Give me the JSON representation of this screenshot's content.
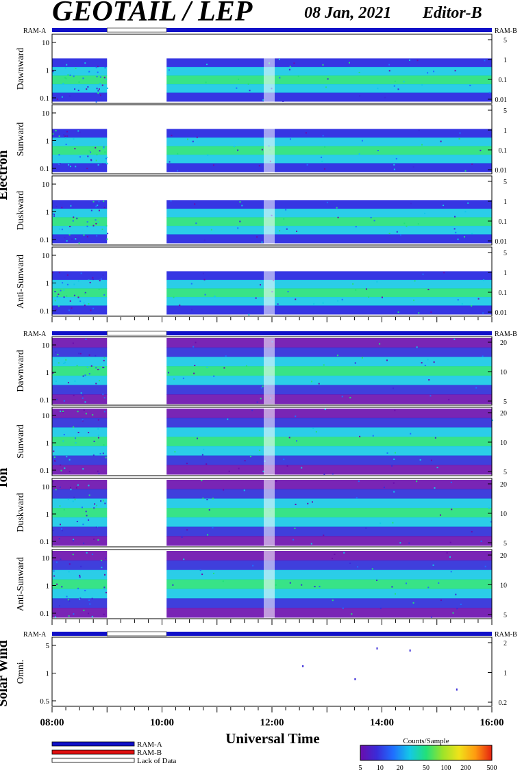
{
  "header": {
    "title": "GEOTAIL / LEP",
    "date": "08 Jan, 2021",
    "editor": "Editor-B"
  },
  "colors": {
    "ram_a": "#1010c8",
    "ram_b": "#e01010",
    "lack_of_data": "#ffffff",
    "colorbar": [
      "#6a0dad",
      "#3a2bd8",
      "#1f6fff",
      "#14c8e6",
      "#22e07a",
      "#9be32a",
      "#f0e21a",
      "#ff9a10",
      "#e42010"
    ]
  },
  "ram_strip": {
    "left_label": "RAM-A",
    "right_label": "RAM-B",
    "lack_of_data_hours": [
      9.0,
      10.05
    ]
  },
  "groups": [
    {
      "label": "Electron",
      "panels": [
        0,
        1,
        2,
        3
      ]
    },
    {
      "label": "Ion",
      "panels": [
        4,
        5,
        6,
        7
      ]
    },
    {
      "label": "Solar Wind",
      "panels": [
        8
      ]
    }
  ],
  "chart_data": {
    "type": "heatmap",
    "xlabel": "Universal Time",
    "xlim": [
      "08:00",
      "16:00"
    ],
    "xticks": [
      "08:00",
      "10:00",
      "12:00",
      "14:00",
      "16:00"
    ],
    "data_gap": [
      "09:00",
      "10:05"
    ],
    "colorbar": {
      "title": "Counts/Sample",
      "scale": "log",
      "range": [
        5,
        500
      ],
      "ticks": [
        "5",
        "10",
        "20",
        "50",
        "100",
        "200",
        "500"
      ]
    },
    "panels": [
      {
        "group": "Electron",
        "name": "Dawnward",
        "yscale": "log",
        "yticks_left": [
          "10",
          "1",
          "0.1"
        ],
        "yticks_right": [
          "5",
          "1",
          "0.1",
          "0.01"
        ]
      },
      {
        "group": "Electron",
        "name": "Sunward",
        "yscale": "log",
        "yticks_left": [
          "10",
          "1",
          "0.1"
        ],
        "yticks_right": [
          "5",
          "1",
          "0.1",
          "0.01"
        ]
      },
      {
        "group": "Electron",
        "name": "Duskward",
        "yscale": "log",
        "yticks_left": [
          "10",
          "1",
          "0.1"
        ],
        "yticks_right": [
          "5",
          "1",
          "0.1",
          "0.01"
        ]
      },
      {
        "group": "Electron",
        "name": "Anti-Sunward",
        "yscale": "log",
        "yticks_left": [
          "10",
          "1",
          "0.1"
        ],
        "yticks_right": [
          "5",
          "1",
          "0.1",
          "0.01"
        ]
      },
      {
        "group": "Ion",
        "name": "Dawnward",
        "yscale": "log",
        "yticks_left": [
          "10",
          "1",
          "0.1"
        ],
        "yticks_right": [
          "20",
          "10",
          "5"
        ]
      },
      {
        "group": "Ion",
        "name": "Sunward",
        "yscale": "log",
        "yticks_left": [
          "10",
          "1",
          "0.1"
        ],
        "yticks_right": [
          "20",
          "10",
          "5"
        ]
      },
      {
        "group": "Ion",
        "name": "Duskward",
        "yscale": "log",
        "yticks_left": [
          "10",
          "1",
          "0.1"
        ],
        "yticks_right": [
          "20",
          "10",
          "5"
        ]
      },
      {
        "group": "Ion",
        "name": "Anti-Sunward",
        "yscale": "log",
        "yticks_left": [
          "10",
          "1",
          "0.1"
        ],
        "yticks_right": [
          "20",
          "10",
          "5"
        ]
      },
      {
        "group": "Solar Wind",
        "name": "Omni.",
        "yscale": "log",
        "yticks_left": [
          "5",
          "1",
          "0.5"
        ],
        "yticks_right": [
          "2",
          "1",
          "0.2"
        ]
      }
    ]
  },
  "legend": {
    "entries": [
      {
        "label": "RAM-A",
        "color": "#1010c8"
      },
      {
        "label": "RAM-B",
        "color": "#e01010"
      },
      {
        "label": "Lack of Data",
        "color": "#ffffff"
      }
    ]
  }
}
